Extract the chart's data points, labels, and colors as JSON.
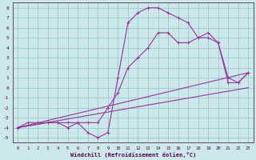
{
  "xlabel": "Windchill (Refroidissement éolien,°C)",
  "xlim": [
    -0.5,
    23.5
  ],
  "ylim": [
    -5.5,
    8.5
  ],
  "xticks": [
    0,
    1,
    2,
    3,
    4,
    5,
    6,
    7,
    8,
    9,
    10,
    11,
    12,
    13,
    14,
    15,
    16,
    17,
    18,
    19,
    20,
    21,
    22,
    23
  ],
  "yticks": [
    -5,
    -4,
    -3,
    -2,
    -1,
    0,
    1,
    2,
    3,
    4,
    5,
    6,
    7,
    8
  ],
  "bg_color": "#cce8ea",
  "line_color": "#993399",
  "grid_color": "#99cccc",
  "line1_x": [
    0,
    1,
    2,
    3,
    4,
    5,
    6,
    7,
    8,
    9,
    10,
    11,
    12,
    13,
    14,
    15,
    16,
    17,
    18,
    19,
    20,
    21,
    22,
    23
  ],
  "line1_y": [
    -4.0,
    -3.5,
    -3.5,
    -3.5,
    -3.5,
    -3.5,
    -3.5,
    -3.5,
    -3.5,
    -2.0,
    -0.5,
    2.0,
    3.0,
    4.0,
    5.5,
    5.5,
    4.5,
    4.5,
    5.0,
    5.0,
    4.5,
    1.0,
    0.5,
    1.5
  ],
  "line2_x": [
    0,
    3,
    4,
    5,
    6,
    7,
    8,
    9,
    10,
    11,
    12,
    13,
    14,
    15,
    16,
    17,
    18,
    19,
    20,
    21,
    22,
    23
  ],
  "line2_y": [
    -4.0,
    -3.5,
    -3.5,
    -4.0,
    -3.5,
    -4.5,
    -5.0,
    -4.5,
    1.0,
    6.5,
    7.5,
    8.0,
    8.0,
    7.5,
    7.0,
    6.5,
    5.0,
    5.5,
    4.5,
    0.5,
    0.5,
    1.5
  ],
  "line3_x": [
    0,
    23
  ],
  "line3_y": [
    -4.0,
    1.5
  ],
  "line4_x": [
    0,
    23
  ],
  "line4_y": [
    -4.0,
    0.0
  ]
}
